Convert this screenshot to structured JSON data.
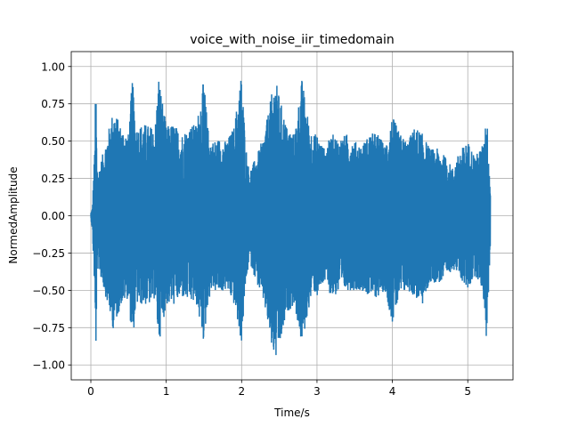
{
  "chart_data": {
    "type": "line",
    "title": "voice_with_noise_iir_timedomain",
    "xlabel": "Time/s",
    "ylabel": "NormedAmplitude",
    "xlim": [
      -0.26,
      5.6
    ],
    "ylim": [
      -1.1,
      1.1
    ],
    "xticks": [
      "0",
      "1",
      "2",
      "3",
      "4",
      "5"
    ],
    "yticks": [
      "−1.00",
      "−0.75",
      "−0.50",
      "−0.25",
      "0.00",
      "0.25",
      "0.50",
      "0.75",
      "1.00"
    ],
    "grid": true,
    "series": [
      {
        "color": "#1f77b4",
        "x_range": [
          0.0,
          5.3
        ],
        "envelope": {
          "x": [
            0.0,
            0.02,
            0.05,
            0.06,
            0.07,
            0.08,
            0.1,
            0.15,
            0.2,
            0.3,
            0.4,
            0.5,
            0.55,
            0.6,
            0.7,
            0.8,
            0.85,
            0.9,
            1.0,
            1.1,
            1.2,
            1.3,
            1.4,
            1.5,
            1.55,
            1.6,
            1.7,
            1.8,
            1.9,
            2.0,
            2.05,
            2.1,
            2.2,
            2.3,
            2.4,
            2.45,
            2.5,
            2.55,
            2.6,
            2.7,
            2.8,
            2.9,
            2.95,
            3.0,
            3.1,
            3.2,
            3.3,
            3.4,
            3.5,
            3.6,
            3.7,
            3.8,
            3.9,
            4.0,
            4.1,
            4.2,
            4.3,
            4.4,
            4.5,
            4.6,
            4.7,
            4.8,
            4.9,
            5.0,
            5.1,
            5.2,
            5.25,
            5.3
          ],
          "upper": [
            0.02,
            0.05,
            0.45,
            0.77,
            0.82,
            0.35,
            0.3,
            0.4,
            0.5,
            0.72,
            0.6,
            0.55,
            0.93,
            0.6,
            0.62,
            0.6,
            0.58,
            0.95,
            0.6,
            0.62,
            0.55,
            0.6,
            0.62,
            0.92,
            0.6,
            0.5,
            0.52,
            0.5,
            0.6,
            0.97,
            0.5,
            0.3,
            0.4,
            0.55,
            0.82,
            0.92,
            0.8,
            0.7,
            0.6,
            0.55,
            0.92,
            0.6,
            0.55,
            0.55,
            0.45,
            0.55,
            0.52,
            0.55,
            0.5,
            0.48,
            0.55,
            0.56,
            0.47,
            0.67,
            0.55,
            0.5,
            0.6,
            0.55,
            0.45,
            0.45,
            0.4,
            0.32,
            0.44,
            0.5,
            0.4,
            0.48,
            0.7,
            0.2
          ],
          "lower": [
            -0.02,
            -0.1,
            -0.5,
            -0.85,
            -0.9,
            -0.4,
            -0.35,
            -0.45,
            -0.55,
            -0.77,
            -0.6,
            -0.55,
            -0.87,
            -0.6,
            -0.6,
            -0.6,
            -0.55,
            -0.86,
            -0.6,
            -0.6,
            -0.55,
            -0.58,
            -0.6,
            -0.86,
            -0.6,
            -0.5,
            -0.52,
            -0.5,
            -0.6,
            -0.86,
            -0.5,
            -0.3,
            -0.45,
            -0.6,
            -0.9,
            -0.98,
            -0.9,
            -0.8,
            -0.65,
            -0.6,
            -0.88,
            -0.6,
            -0.5,
            -0.55,
            -0.45,
            -0.55,
            -0.52,
            -0.5,
            -0.5,
            -0.5,
            -0.55,
            -0.55,
            -0.5,
            -0.72,
            -0.55,
            -0.5,
            -0.55,
            -0.6,
            -0.45,
            -0.45,
            -0.45,
            -0.35,
            -0.42,
            -0.5,
            -0.4,
            -0.5,
            -0.86,
            -0.2
          ]
        }
      }
    ]
  }
}
